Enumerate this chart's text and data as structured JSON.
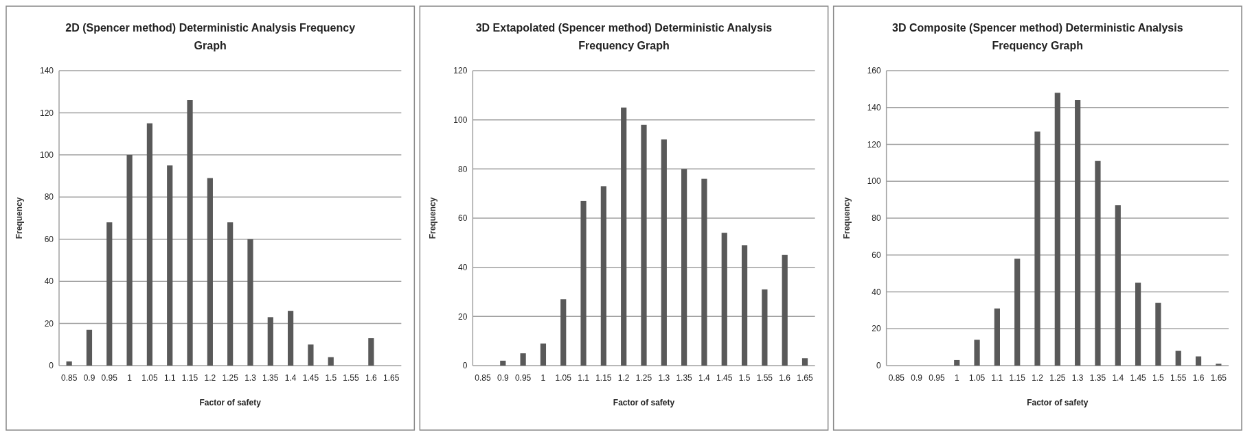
{
  "chart_data": [
    {
      "type": "bar",
      "title": "2D (Spencer method) Deterministic Analysis Frequency Graph",
      "xlabel": "Factor of safety",
      "ylabel": "Frequency",
      "categories": [
        "0.85",
        "0.9",
        "0.95",
        "1",
        "1.05",
        "1.1",
        "1.15",
        "1.2",
        "1.25",
        "1.3",
        "1.35",
        "1.4",
        "1.45",
        "1.5",
        "1.55",
        "1.6",
        "1.65"
      ],
      "values": [
        2,
        17,
        68,
        100,
        115,
        95,
        126,
        89,
        68,
        60,
        23,
        26,
        10,
        4,
        0,
        13,
        0
      ],
      "color": "#595959",
      "ylim": [
        0,
        140
      ],
      "yticks": [
        0,
        20,
        40,
        60,
        80,
        100,
        120,
        140
      ],
      "grid": "y"
    },
    {
      "type": "bar",
      "title": "3D Extapolated (Spencer method) Deterministic Analysis Frequency Graph",
      "xlabel": "Factor of safety",
      "ylabel": "Frequency",
      "categories": [
        "0.85",
        "0.9",
        "0.95",
        "1",
        "1.05",
        "1.1",
        "1.15",
        "1.2",
        "1.25",
        "1.3",
        "1.35",
        "1.4",
        "1.45",
        "1.5",
        "1.55",
        "1.6",
        "1.65"
      ],
      "values": [
        0,
        2,
        5,
        9,
        27,
        67,
        73,
        105,
        98,
        92,
        80,
        76,
        54,
        49,
        31,
        45,
        3
      ],
      "color": "#595959",
      "ylim": [
        0,
        120
      ],
      "yticks": [
        0,
        20,
        40,
        60,
        80,
        100,
        120
      ],
      "grid": "y"
    },
    {
      "type": "bar",
      "title": "3D Composite (Spencer method) Deterministic Analysis Frequency Graph",
      "xlabel": "Factor of safety",
      "ylabel": "Frequency",
      "categories": [
        "0.85",
        "0.9",
        "0.95",
        "1",
        "1.05",
        "1.1",
        "1.15",
        "1.2",
        "1.25",
        "1.3",
        "1.35",
        "1.4",
        "1.45",
        "1.5",
        "1.55",
        "1.6",
        "1.65"
      ],
      "values": [
        0,
        0,
        0,
        3,
        14,
        31,
        58,
        127,
        148,
        144,
        111,
        87,
        45,
        34,
        8,
        5,
        1
      ],
      "color": "#595959",
      "ylim": [
        0,
        160
      ],
      "yticks": [
        0,
        20,
        40,
        60,
        80,
        100,
        120,
        140,
        160
      ],
      "grid": "y"
    }
  ]
}
